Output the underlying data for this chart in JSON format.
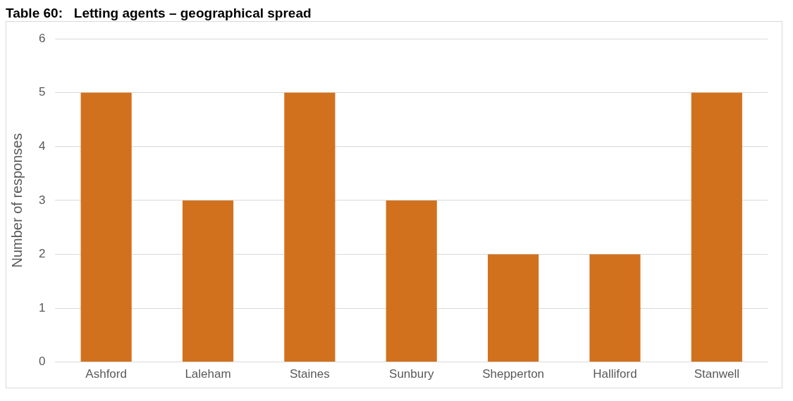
{
  "chart_data": {
    "type": "bar",
    "title": "Table 60:   Letting agents – geographical spread",
    "ylabel": "Number of responses",
    "categories": [
      "Ashford",
      "Laleham",
      "Staines",
      "Sunbury",
      "Shepperton",
      "Halliford",
      "Stanwell"
    ],
    "values": [
      5,
      3,
      5,
      3,
      2,
      2,
      5
    ],
    "color": "#d2711d",
    "ylim": [
      0,
      6
    ],
    "yticks": [
      0,
      1,
      2,
      3,
      4,
      5,
      6
    ],
    "grid": "y",
    "legend": false
  }
}
